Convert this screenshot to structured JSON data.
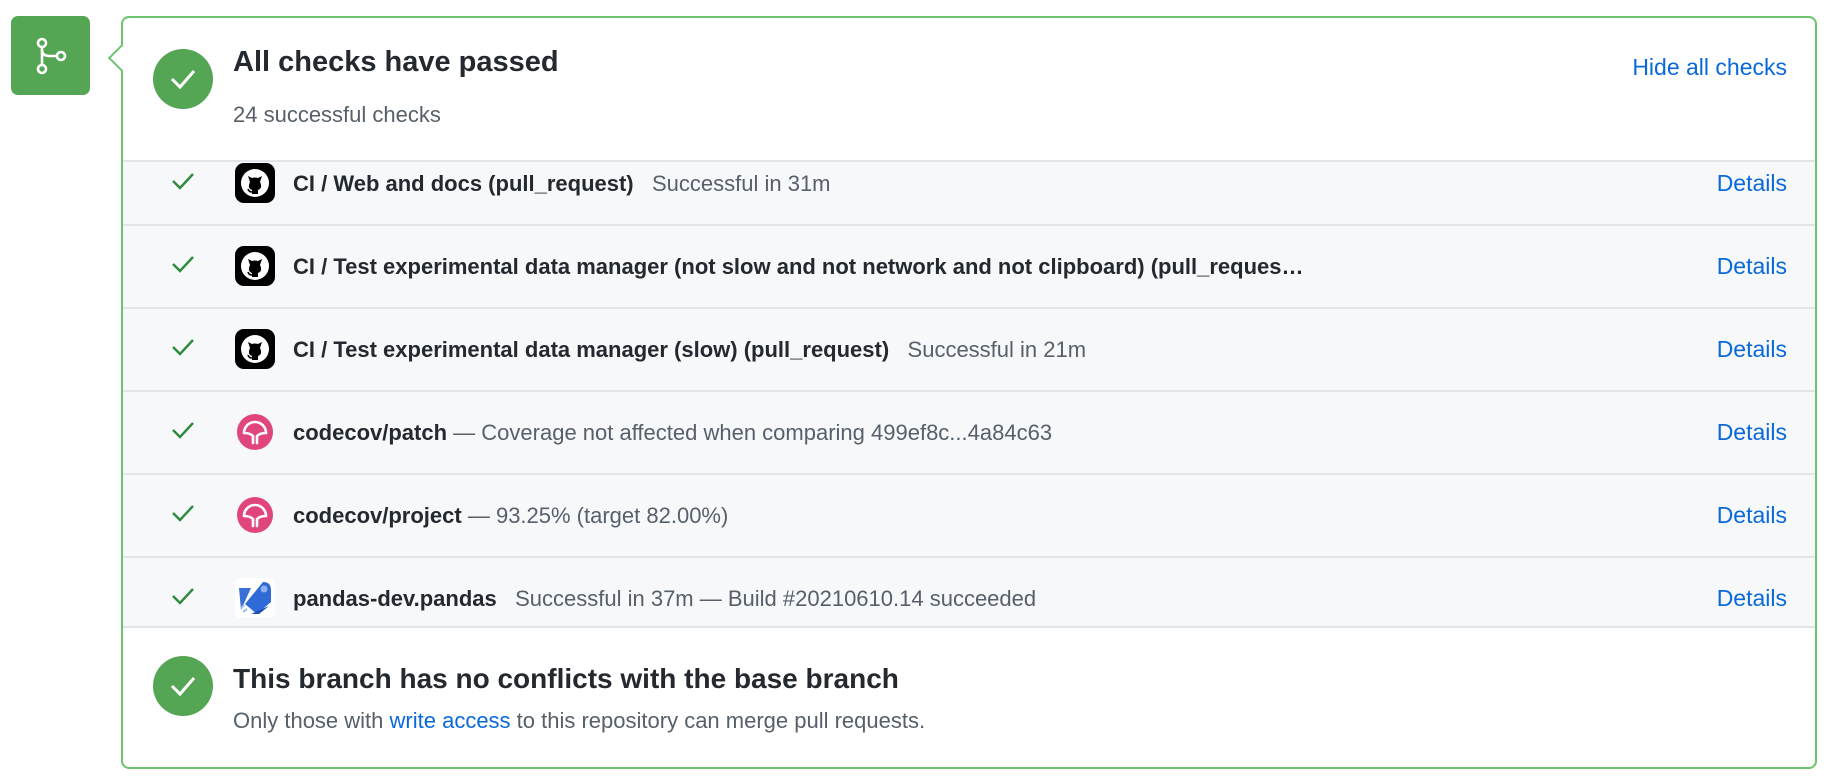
{
  "branch_icon": "git-branch-icon",
  "colors": {
    "success": "#55a654",
    "link": "#0969da",
    "border": "#6cc46f",
    "codecov": "#e0467c",
    "azure": "#2f6bd6"
  },
  "header": {
    "title": "All checks have passed",
    "subtitle": "24 successful checks",
    "toggle_label": "Hide all checks"
  },
  "checks": [
    {
      "icon": "github-icon",
      "name": "CI / Web and docs (pull_request)",
      "sep": "   ",
      "desc": "Successful in 31m",
      "details": "Details"
    },
    {
      "icon": "github-icon",
      "name": "CI / Test experimental data manager (not slow and not network and not clipboard) (pull_reques…",
      "sep": "",
      "desc": "",
      "details": "Details"
    },
    {
      "icon": "github-icon",
      "name": "CI / Test experimental data manager (slow) (pull_request)",
      "sep": "   ",
      "desc": "Successful in 21m",
      "details": "Details"
    },
    {
      "icon": "codecov-icon",
      "name": "codecov/patch",
      "sep": " ",
      "desc": "— Coverage not affected when comparing 499ef8c...4a84c63",
      "details": "Details"
    },
    {
      "icon": "codecov-icon",
      "name": "codecov/project",
      "sep": " ",
      "desc": "— 93.25% (target 82.00%)",
      "details": "Details"
    },
    {
      "icon": "azure-pipelines-icon",
      "name": "pandas-dev.pandas",
      "sep": "   ",
      "desc": "Successful in 37m — Build #20210610.14 succeeded",
      "details": "Details"
    }
  ],
  "merge": {
    "title": "This branch has no conflicts with the base branch",
    "sub_before": "Only those with ",
    "sub_link": "write access",
    "sub_after": " to this repository can merge pull requests."
  }
}
